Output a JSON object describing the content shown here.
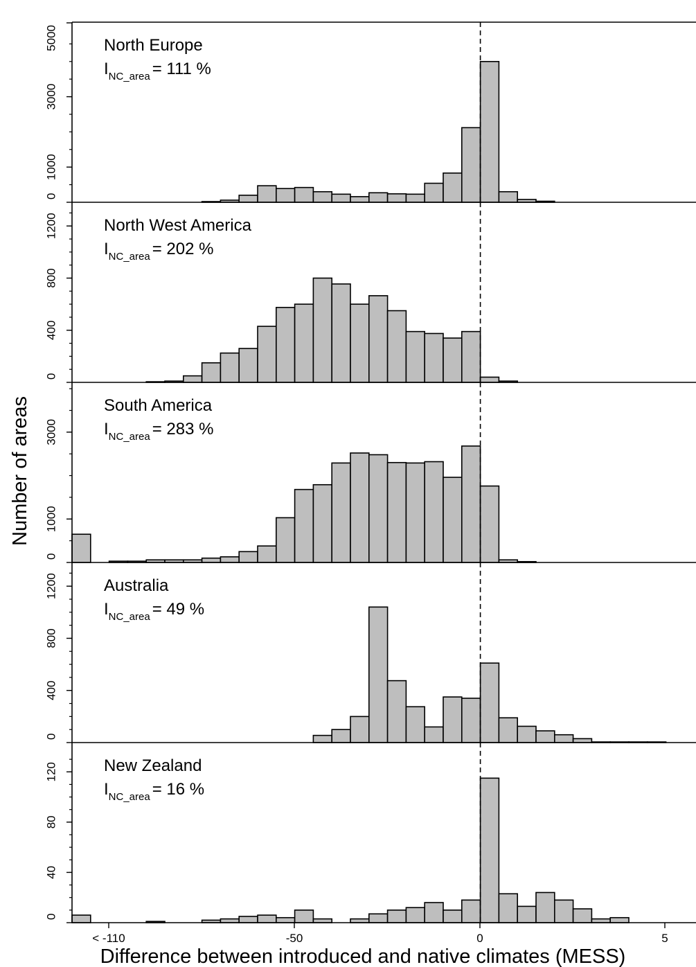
{
  "chart_data": {
    "type": "bar",
    "subtype": "stacked-panel histograms",
    "xlabel": "Difference between introduced and native climates (MESS)",
    "ylabel": "Number of areas",
    "x_tick_labels": [
      "< -110",
      "-50",
      "0",
      "5"
    ],
    "bin_centers": [
      -107.5,
      -102.5,
      -97.5,
      -92.5,
      -87.5,
      -82.5,
      -77.5,
      -72.5,
      -67.5,
      -62.5,
      -57.5,
      -52.5,
      -47.5,
      -42.5,
      -37.5,
      -32.5,
      -27.5,
      -22.5,
      -17.5,
      -12.5,
      -7.5,
      -2.5,
      2.5,
      7.5,
      12.5,
      17.5,
      22.5,
      27.5,
      32.5,
      37.5,
      42.5,
      47.5
    ],
    "bin_labels": [
      "< -110",
      "-105",
      "-100",
      "-95",
      "-90",
      "-85",
      "-80",
      "-75",
      "-70",
      "-65",
      "-60",
      "-55",
      "-50",
      "-45",
      "-40",
      "-35",
      "-30",
      "-25",
      "-20",
      "-15",
      "-10",
      "-5",
      "0",
      "0.5",
      "1",
      "1.5",
      "2",
      "2.5",
      "3",
      "3.5",
      "4",
      "4.5"
    ],
    "reference_line": {
      "x_label": "0",
      "style": "dashed"
    },
    "panels": [
      {
        "name": "North Europe",
        "index_label": "I",
        "index_subscript": "NC_area",
        "index_value": "= 111 %",
        "y_ticks": [
          "0",
          "1000",
          "3000",
          "5000"
        ],
        "ylim": [
          0,
          5000
        ],
        "minor_step": 500,
        "values": [
          0,
          0,
          0,
          0,
          0,
          0,
          0,
          20,
          60,
          200,
          470,
          390,
          420,
          300,
          230,
          160,
          270,
          240,
          230,
          540,
          830,
          2120,
          4000,
          300,
          80,
          30,
          0,
          0,
          0,
          0,
          0,
          0
        ]
      },
      {
        "name": "North West America",
        "index_label": "I",
        "index_subscript": "NC_area",
        "index_value": "= 202 %",
        "y_ticks": [
          "0",
          "400",
          "800",
          "1200"
        ],
        "ylim": [
          0,
          1350
        ],
        "minor_step": 100,
        "values": [
          0,
          0,
          0,
          0,
          5,
          10,
          50,
          150,
          225,
          260,
          430,
          575,
          600,
          800,
          755,
          600,
          665,
          550,
          390,
          375,
          340,
          390,
          40,
          10,
          0,
          0,
          0,
          0,
          0,
          0,
          0,
          0
        ]
      },
      {
        "name": "South America",
        "index_label": "I",
        "index_subscript": "NC_area",
        "index_value": "= 283 %",
        "y_ticks": [
          "0",
          "1000",
          "3000"
        ],
        "ylim": [
          0,
          4050
        ],
        "minor_step": 500,
        "values": [
          650,
          0,
          30,
          30,
          60,
          60,
          60,
          100,
          130,
          250,
          380,
          1030,
          1680,
          1790,
          2290,
          2520,
          2480,
          2300,
          2290,
          2320,
          1960,
          2680,
          1760,
          60,
          20,
          0,
          0,
          0,
          0,
          0,
          0,
          0
        ]
      },
      {
        "name": "Australia",
        "index_label": "I",
        "index_subscript": "NC_area",
        "index_value": "= 49 %",
        "y_ticks": [
          "0",
          "400",
          "800",
          "1200"
        ],
        "ylim": [
          0,
          1350
        ],
        "minor_step": 100,
        "values": [
          0,
          0,
          0,
          0,
          0,
          0,
          0,
          0,
          0,
          0,
          0,
          0,
          0,
          55,
          100,
          200,
          1040,
          475,
          275,
          120,
          350,
          340,
          610,
          190,
          125,
          90,
          60,
          30,
          5,
          5,
          5,
          5
        ]
      },
      {
        "name": "New Zealand",
        "index_label": "I",
        "index_subscript": "NC_area",
        "index_value": "= 16 %",
        "y_ticks": [
          "0",
          "40",
          "80",
          "120"
        ],
        "ylim": [
          0,
          140
        ],
        "minor_step": 10,
        "values": [
          6,
          0,
          0,
          0,
          1,
          0,
          0,
          2,
          3,
          5,
          6,
          4,
          10,
          3,
          0,
          3,
          7,
          10,
          12,
          16,
          10,
          18,
          115,
          23,
          13,
          24,
          18,
          11,
          3,
          4,
          0,
          0
        ]
      }
    ]
  }
}
